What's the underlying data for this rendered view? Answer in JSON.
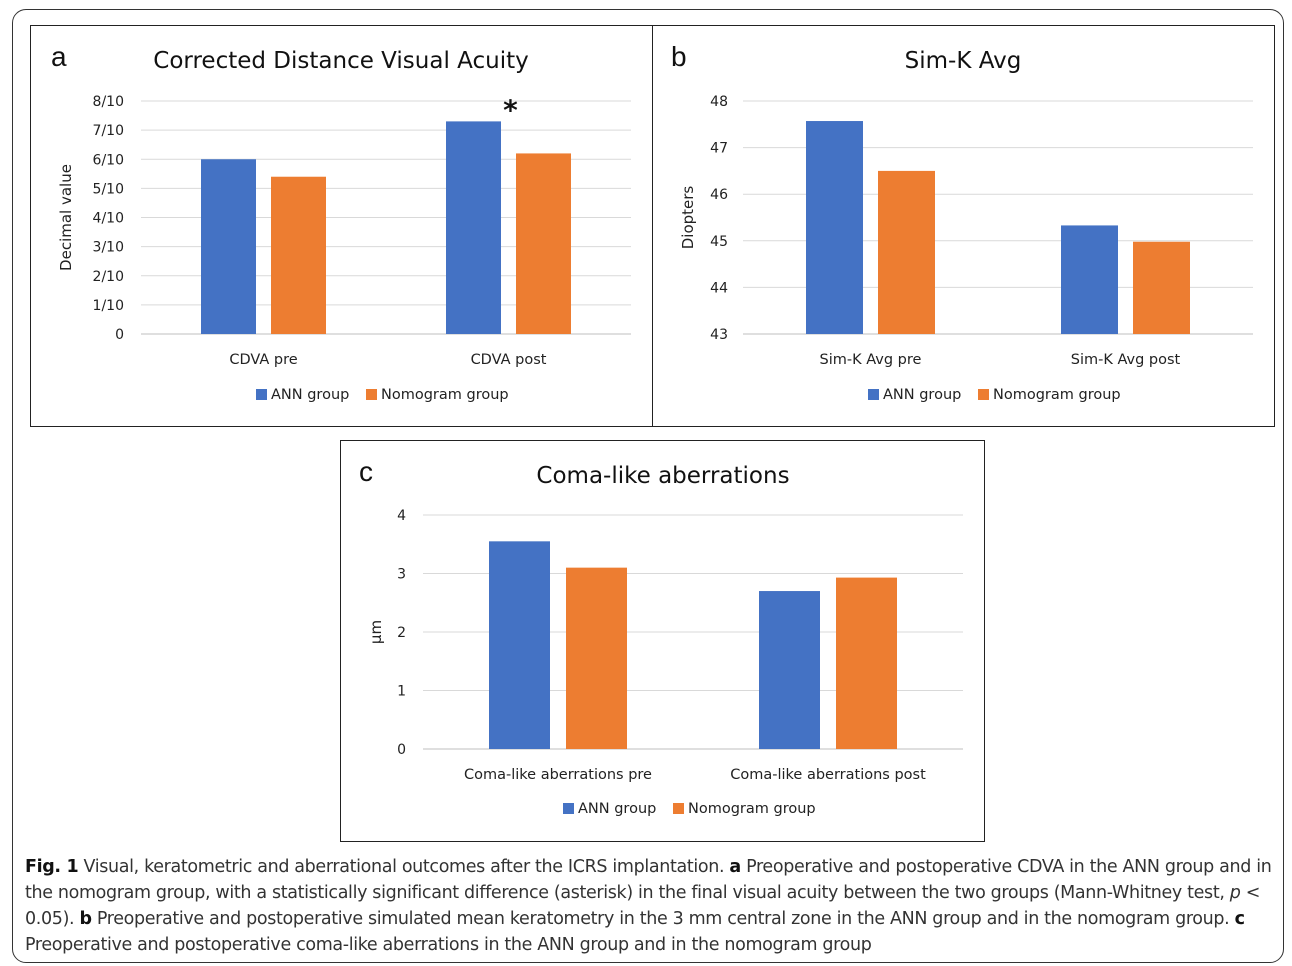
{
  "chart_data": [
    {
      "type": "bar",
      "panel_letter": "a",
      "title": "Corrected Distance Visual Acuity",
      "xlabel": "",
      "ylabel": "Decimal value",
      "categories": [
        "CDVA pre",
        "CDVA post"
      ],
      "series": [
        {
          "name": "ANN group",
          "values": [
            0.6,
            0.73
          ],
          "color": "#4472C4"
        },
        {
          "name": "Nomogram group",
          "values": [
            0.54,
            0.62
          ],
          "color": "#ED7D31"
        }
      ],
      "ylim": [
        0,
        0.8
      ],
      "yticks": [
        0,
        0.1,
        0.2,
        0.3,
        0.4,
        0.5,
        0.6,
        0.7,
        0.8
      ],
      "ytick_labels": [
        "0",
        "1/10",
        "2/10",
        "3/10",
        "4/10",
        "5/10",
        "6/10",
        "7/10",
        "8/10"
      ],
      "annotations": [
        {
          "text": "*",
          "category": "CDVA post"
        }
      ],
      "grid": true,
      "legend": "bottom"
    },
    {
      "type": "bar",
      "panel_letter": "b",
      "title": "Sim-K Avg",
      "xlabel": "",
      "ylabel": "Diopters",
      "categories": [
        "Sim-K Avg pre",
        "Sim-K Avg post"
      ],
      "series": [
        {
          "name": "ANN group",
          "values": [
            47.57,
            45.33
          ],
          "color": "#4472C4"
        },
        {
          "name": "Nomogram group",
          "values": [
            46.5,
            44.98
          ],
          "color": "#ED7D31"
        }
      ],
      "ylim": [
        43,
        48
      ],
      "yticks": [
        43,
        44,
        45,
        46,
        47,
        48
      ],
      "ytick_labels": [
        "43",
        "44",
        "45",
        "46",
        "47",
        "48"
      ],
      "annotations": [],
      "grid": true,
      "legend": "bottom"
    },
    {
      "type": "bar",
      "panel_letter": "c",
      "title": "Coma-like aberrations",
      "xlabel": "",
      "ylabel": "µm",
      "categories": [
        "Coma-like aberrations pre",
        "Coma-like aberrations post"
      ],
      "series": [
        {
          "name": "ANN group",
          "values": [
            3.55,
            2.7
          ],
          "color": "#4472C4"
        },
        {
          "name": "Nomogram group",
          "values": [
            3.1,
            2.93
          ],
          "color": "#ED7D31"
        }
      ],
      "ylim": [
        0,
        4
      ],
      "yticks": [
        0,
        1,
        2,
        3,
        4
      ],
      "ytick_labels": [
        "0",
        "1",
        "2",
        "3",
        "4"
      ],
      "annotations": [],
      "grid": true,
      "legend": "bottom"
    }
  ],
  "caption": {
    "label": "Fig. 1",
    "text_1": " Visual, keratometric and aberrational outcomes after the ICRS implantation. ",
    "a": "a",
    "text_a": " Preoperative and postoperative CDVA in the ANN group and in the nomogram group, with a statistically significant difference (asterisk) in the final visual acuity between the two groups (Mann-Whitney test, ",
    "p": "p",
    "p_value": " < 0.05). ",
    "b": "b",
    "text_b": " Preoperative and postoperative simulated mean keratometry in the 3 mm central zone in the ANN group and in the nomogram group. ",
    "c": "c",
    "text_c": " Preoperative and postoperative coma-like aberrations in the ANN group and in the nomogram group"
  }
}
